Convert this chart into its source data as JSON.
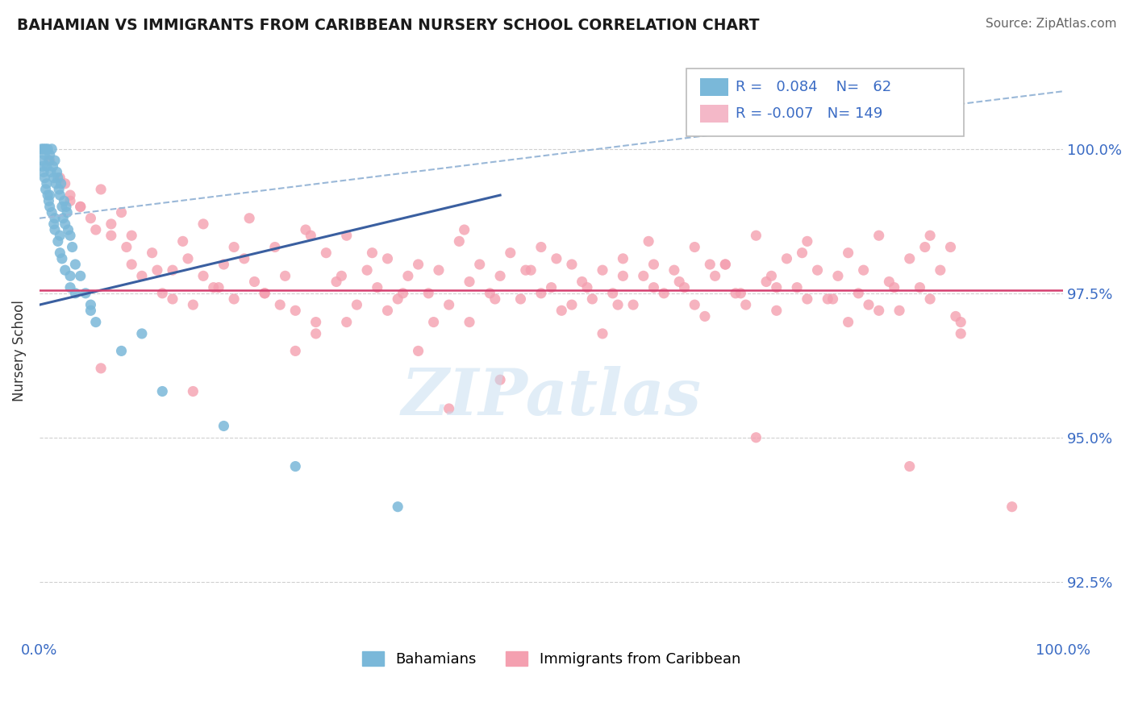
{
  "title": "BAHAMIAN VS IMMIGRANTS FROM CARIBBEAN NURSERY SCHOOL CORRELATION CHART",
  "source_text": "Source: ZipAtlas.com",
  "ylabel": "Nursery School",
  "xlim": [
    0.0,
    100.0
  ],
  "ylim": [
    91.5,
    101.5
  ],
  "yticks": [
    92.5,
    95.0,
    97.5,
    100.0
  ],
  "ytick_labels": [
    "92.5%",
    "95.0%",
    "97.5%",
    "100.0%"
  ],
  "blue_R": 0.084,
  "blue_N": 62,
  "pink_R": -0.007,
  "pink_N": 149,
  "blue_color": "#7ab8d9",
  "pink_color": "#f4a0b0",
  "blue_scatter_x": [
    0.2,
    0.3,
    0.4,
    0.5,
    0.6,
    0.7,
    0.8,
    0.9,
    1.0,
    1.1,
    1.2,
    1.3,
    1.4,
    1.5,
    1.6,
    1.7,
    1.8,
    1.9,
    2.0,
    2.1,
    2.2,
    2.3,
    2.4,
    2.5,
    2.6,
    2.7,
    2.8,
    3.0,
    3.2,
    3.5,
    4.0,
    4.5,
    5.0,
    0.5,
    0.8,
    1.0,
    1.5,
    2.0,
    0.3,
    0.6,
    1.2,
    1.8,
    2.5,
    3.0,
    0.4,
    0.9,
    1.4,
    2.2,
    3.5,
    5.5,
    8.0,
    12.0,
    18.0,
    25.0,
    35.0,
    1.0,
    2.0,
    0.7,
    1.5,
    3.0,
    5.0,
    10.0
  ],
  "blue_scatter_y": [
    100.0,
    99.8,
    100.0,
    99.9,
    100.0,
    99.7,
    100.0,
    99.8,
    99.9,
    99.6,
    100.0,
    99.7,
    99.5,
    99.8,
    99.4,
    99.6,
    99.5,
    99.3,
    99.2,
    99.4,
    99.0,
    98.8,
    99.1,
    98.7,
    99.0,
    98.9,
    98.6,
    98.5,
    98.3,
    98.0,
    97.8,
    97.5,
    97.3,
    99.5,
    99.2,
    99.0,
    98.6,
    98.2,
    99.7,
    99.3,
    98.9,
    98.4,
    97.9,
    97.6,
    99.6,
    99.1,
    98.7,
    98.1,
    97.5,
    97.0,
    96.5,
    95.8,
    95.2,
    94.5,
    93.8,
    99.2,
    98.5,
    99.4,
    98.8,
    97.8,
    97.2,
    96.8
  ],
  "pink_scatter_x": [
    1.0,
    2.0,
    3.0,
    4.0,
    5.0,
    6.0,
    7.0,
    8.0,
    9.0,
    10.0,
    11.0,
    12.0,
    13.0,
    14.0,
    15.0,
    16.0,
    17.0,
    18.0,
    19.0,
    20.0,
    21.0,
    22.0,
    23.0,
    24.0,
    25.0,
    26.0,
    27.0,
    28.0,
    29.0,
    30.0,
    31.0,
    32.0,
    33.0,
    34.0,
    35.0,
    36.0,
    37.0,
    38.0,
    39.0,
    40.0,
    41.0,
    42.0,
    43.0,
    44.0,
    45.0,
    46.0,
    47.0,
    48.0,
    49.0,
    50.0,
    51.0,
    52.0,
    53.0,
    54.0,
    55.0,
    56.0,
    57.0,
    58.0,
    59.0,
    60.0,
    61.0,
    62.0,
    63.0,
    64.0,
    65.0,
    66.0,
    67.0,
    68.0,
    69.0,
    70.0,
    71.0,
    72.0,
    73.0,
    74.0,
    75.0,
    76.0,
    77.0,
    78.0,
    79.0,
    80.0,
    81.0,
    82.0,
    83.0,
    84.0,
    85.0,
    86.0,
    87.0,
    88.0,
    89.0,
    90.0,
    2.5,
    5.5,
    8.5,
    11.5,
    14.5,
    17.5,
    20.5,
    23.5,
    26.5,
    29.5,
    32.5,
    35.5,
    38.5,
    41.5,
    44.5,
    47.5,
    50.5,
    53.5,
    56.5,
    59.5,
    62.5,
    65.5,
    68.5,
    71.5,
    74.5,
    77.5,
    80.5,
    83.5,
    86.5,
    89.5,
    4.0,
    9.0,
    16.0,
    22.0,
    30.0,
    37.0,
    45.0,
    52.0,
    60.0,
    67.0,
    75.0,
    82.0,
    90.0,
    3.0,
    7.0,
    13.0,
    19.0,
    27.0,
    34.0,
    42.0,
    49.0,
    57.0,
    64.0,
    72.0,
    79.0,
    87.0,
    6.0,
    15.0,
    25.0,
    40.0,
    55.0,
    70.0,
    85.0,
    95.0
  ],
  "pink_scatter_y": [
    99.8,
    99.5,
    99.2,
    99.0,
    98.8,
    99.3,
    98.5,
    98.9,
    98.0,
    97.8,
    98.2,
    97.5,
    97.9,
    98.4,
    97.3,
    98.7,
    97.6,
    98.0,
    97.4,
    98.1,
    97.7,
    97.5,
    98.3,
    97.8,
    97.2,
    98.6,
    97.0,
    98.2,
    97.7,
    98.5,
    97.3,
    97.9,
    97.6,
    98.1,
    97.4,
    97.8,
    98.0,
    97.5,
    97.9,
    97.3,
    98.4,
    97.7,
    98.0,
    97.5,
    97.8,
    98.2,
    97.4,
    97.9,
    98.3,
    97.6,
    97.2,
    98.0,
    97.7,
    97.4,
    97.9,
    97.5,
    98.1,
    97.3,
    97.8,
    98.0,
    97.5,
    97.9,
    97.6,
    98.3,
    97.1,
    97.8,
    98.0,
    97.5,
    97.3,
    98.5,
    97.7,
    97.2,
    98.1,
    97.6,
    98.4,
    97.9,
    97.4,
    97.8,
    98.2,
    97.5,
    97.3,
    98.5,
    97.7,
    97.2,
    98.1,
    97.6,
    97.4,
    97.9,
    98.3,
    97.0,
    99.4,
    98.6,
    98.3,
    97.9,
    98.1,
    97.6,
    98.8,
    97.3,
    98.5,
    97.8,
    98.2,
    97.5,
    97.0,
    98.6,
    97.4,
    97.9,
    98.1,
    97.6,
    97.3,
    98.4,
    97.7,
    98.0,
    97.5,
    97.8,
    98.2,
    97.4,
    97.9,
    97.6,
    98.3,
    97.1,
    99.0,
    98.5,
    97.8,
    97.5,
    97.0,
    96.5,
    96.0,
    97.3,
    97.6,
    98.0,
    97.4,
    97.2,
    96.8,
    99.1,
    98.7,
    97.4,
    98.3,
    96.8,
    97.2,
    97.0,
    97.5,
    97.8,
    97.3,
    97.6,
    97.0,
    98.5,
    96.2,
    95.8,
    96.5,
    95.5,
    96.8,
    95.0,
    94.5,
    93.8
  ],
  "watermark": "ZIPatlas",
  "blue_trend_line_color": "#3a5fa0",
  "pink_trend_line_color": "#d44070",
  "dashed_line_color": "#9ab8d8",
  "grid_color": "#d0d0d0",
  "title_color": "#1a1a1a",
  "axis_label_color": "#3a6bc4",
  "source_color": "#666666",
  "blue_line_start_x": 0.0,
  "blue_line_start_y": 97.3,
  "blue_line_end_x": 45.0,
  "blue_line_end_y": 99.2,
  "dashed_line_start_x": 0.0,
  "dashed_line_start_y": 98.8,
  "dashed_line_end_x": 100.0,
  "dashed_line_end_y": 101.0,
  "pink_line_y": 97.55
}
